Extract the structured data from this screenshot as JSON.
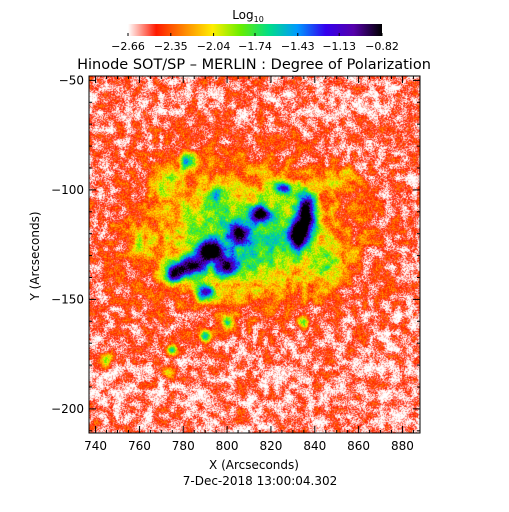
{
  "chart_data": {
    "type": "heatmap",
    "title": "Hinode SOT/SP – MERLIN : Degree of Polarization",
    "xlabel": "X (Arcseconds)",
    "ylabel": "Y (Arcseconds)",
    "date_label": "7-Dec-2018 13:00:04.302",
    "xlim": [
      737,
      888
    ],
    "ylim": [
      -211,
      -48
    ],
    "x_ticks": [
      740,
      760,
      780,
      800,
      820,
      840,
      860,
      880
    ],
    "y_ticks": [
      -50,
      -100,
      -150,
      -200
    ],
    "colorbar": {
      "label_base": "Log",
      "label_sub": "10",
      "tick_values": [
        -2.66,
        -2.35,
        -2.04,
        -1.74,
        -1.43,
        -1.13,
        -0.82
      ],
      "tick_labels": [
        "−2.66",
        "−2.35",
        "−2.04",
        "−1.74",
        "−1.43",
        "−1.13",
        "−0.82"
      ],
      "range": [
        -2.66,
        -0.82
      ],
      "colormap": [
        "#ffffff",
        "#ff1a00",
        "#ff8800",
        "#ffee00",
        "#66ee00",
        "#00dd88",
        "#0099ff",
        "#3300ee",
        "#5500aa",
        "#000000"
      ]
    },
    "background_level": -2.55,
    "features": [
      {
        "x": 836,
        "y": -111,
        "sx": 3,
        "sy": 7,
        "amp": 1.6
      },
      {
        "x": 832,
        "y": -121,
        "sx": 2.5,
        "sy": 4,
        "amp": 1.5
      },
      {
        "x": 792,
        "y": -128,
        "sx": 4,
        "sy": 3,
        "amp": 1.55
      },
      {
        "x": 776,
        "y": -138,
        "sx": 3,
        "sy": 3,
        "amp": 1.55
      },
      {
        "x": 784,
        "y": -135,
        "sx": 4,
        "sy": 3,
        "amp": 1.4
      },
      {
        "x": 815,
        "y": -111,
        "sx": 3,
        "sy": 2.5,
        "amp": 1.25
      },
      {
        "x": 805,
        "y": -120,
        "sx": 3,
        "sy": 3,
        "amp": 1.0
      },
      {
        "x": 800,
        "y": -135,
        "sx": 4,
        "sy": 3,
        "amp": 1.0
      },
      {
        "x": 790,
        "y": -147,
        "sx": 3,
        "sy": 3,
        "amp": 1.1
      },
      {
        "x": 782,
        "y": -87,
        "sx": 2,
        "sy": 2.5,
        "amp": 1.05
      },
      {
        "x": 826,
        "y": -99,
        "sx": 3,
        "sy": 2,
        "amp": 0.95
      },
      {
        "x": 790,
        "y": -167,
        "sx": 2,
        "sy": 2,
        "amp": 1.0
      },
      {
        "x": 800,
        "y": -160,
        "sx": 2,
        "sy": 2,
        "amp": 0.8
      },
      {
        "x": 775,
        "y": -173,
        "sx": 2,
        "sy": 2,
        "amp": 0.8
      },
      {
        "x": 835,
        "y": -160,
        "sx": 2,
        "sy": 2,
        "amp": 0.6
      },
      {
        "x": 807,
        "y": -123,
        "sx": 25,
        "sy": 16,
        "amp": 0.65
      },
      {
        "x": 812,
        "y": -118,
        "sx": 35,
        "sy": 25,
        "amp": 0.3
      },
      {
        "x": 772,
        "y": -95,
        "sx": 5,
        "sy": 7,
        "amp": 0.45
      },
      {
        "x": 845,
        "y": -135,
        "sx": 6,
        "sy": 6,
        "amp": 0.4
      },
      {
        "x": 852,
        "y": -95,
        "sx": 5,
        "sy": 4,
        "amp": 0.35
      },
      {
        "x": 760,
        "y": -125,
        "sx": 4,
        "sy": 5,
        "amp": 0.35
      },
      {
        "x": 745,
        "y": -178,
        "sx": 2,
        "sy": 2,
        "amp": 0.6
      },
      {
        "x": 773,
        "y": -183,
        "sx": 3,
        "sy": 2,
        "amp": 0.45
      },
      {
        "x": 795,
        "y": -102,
        "sx": 3,
        "sy": 3,
        "amp": 0.55
      }
    ]
  }
}
